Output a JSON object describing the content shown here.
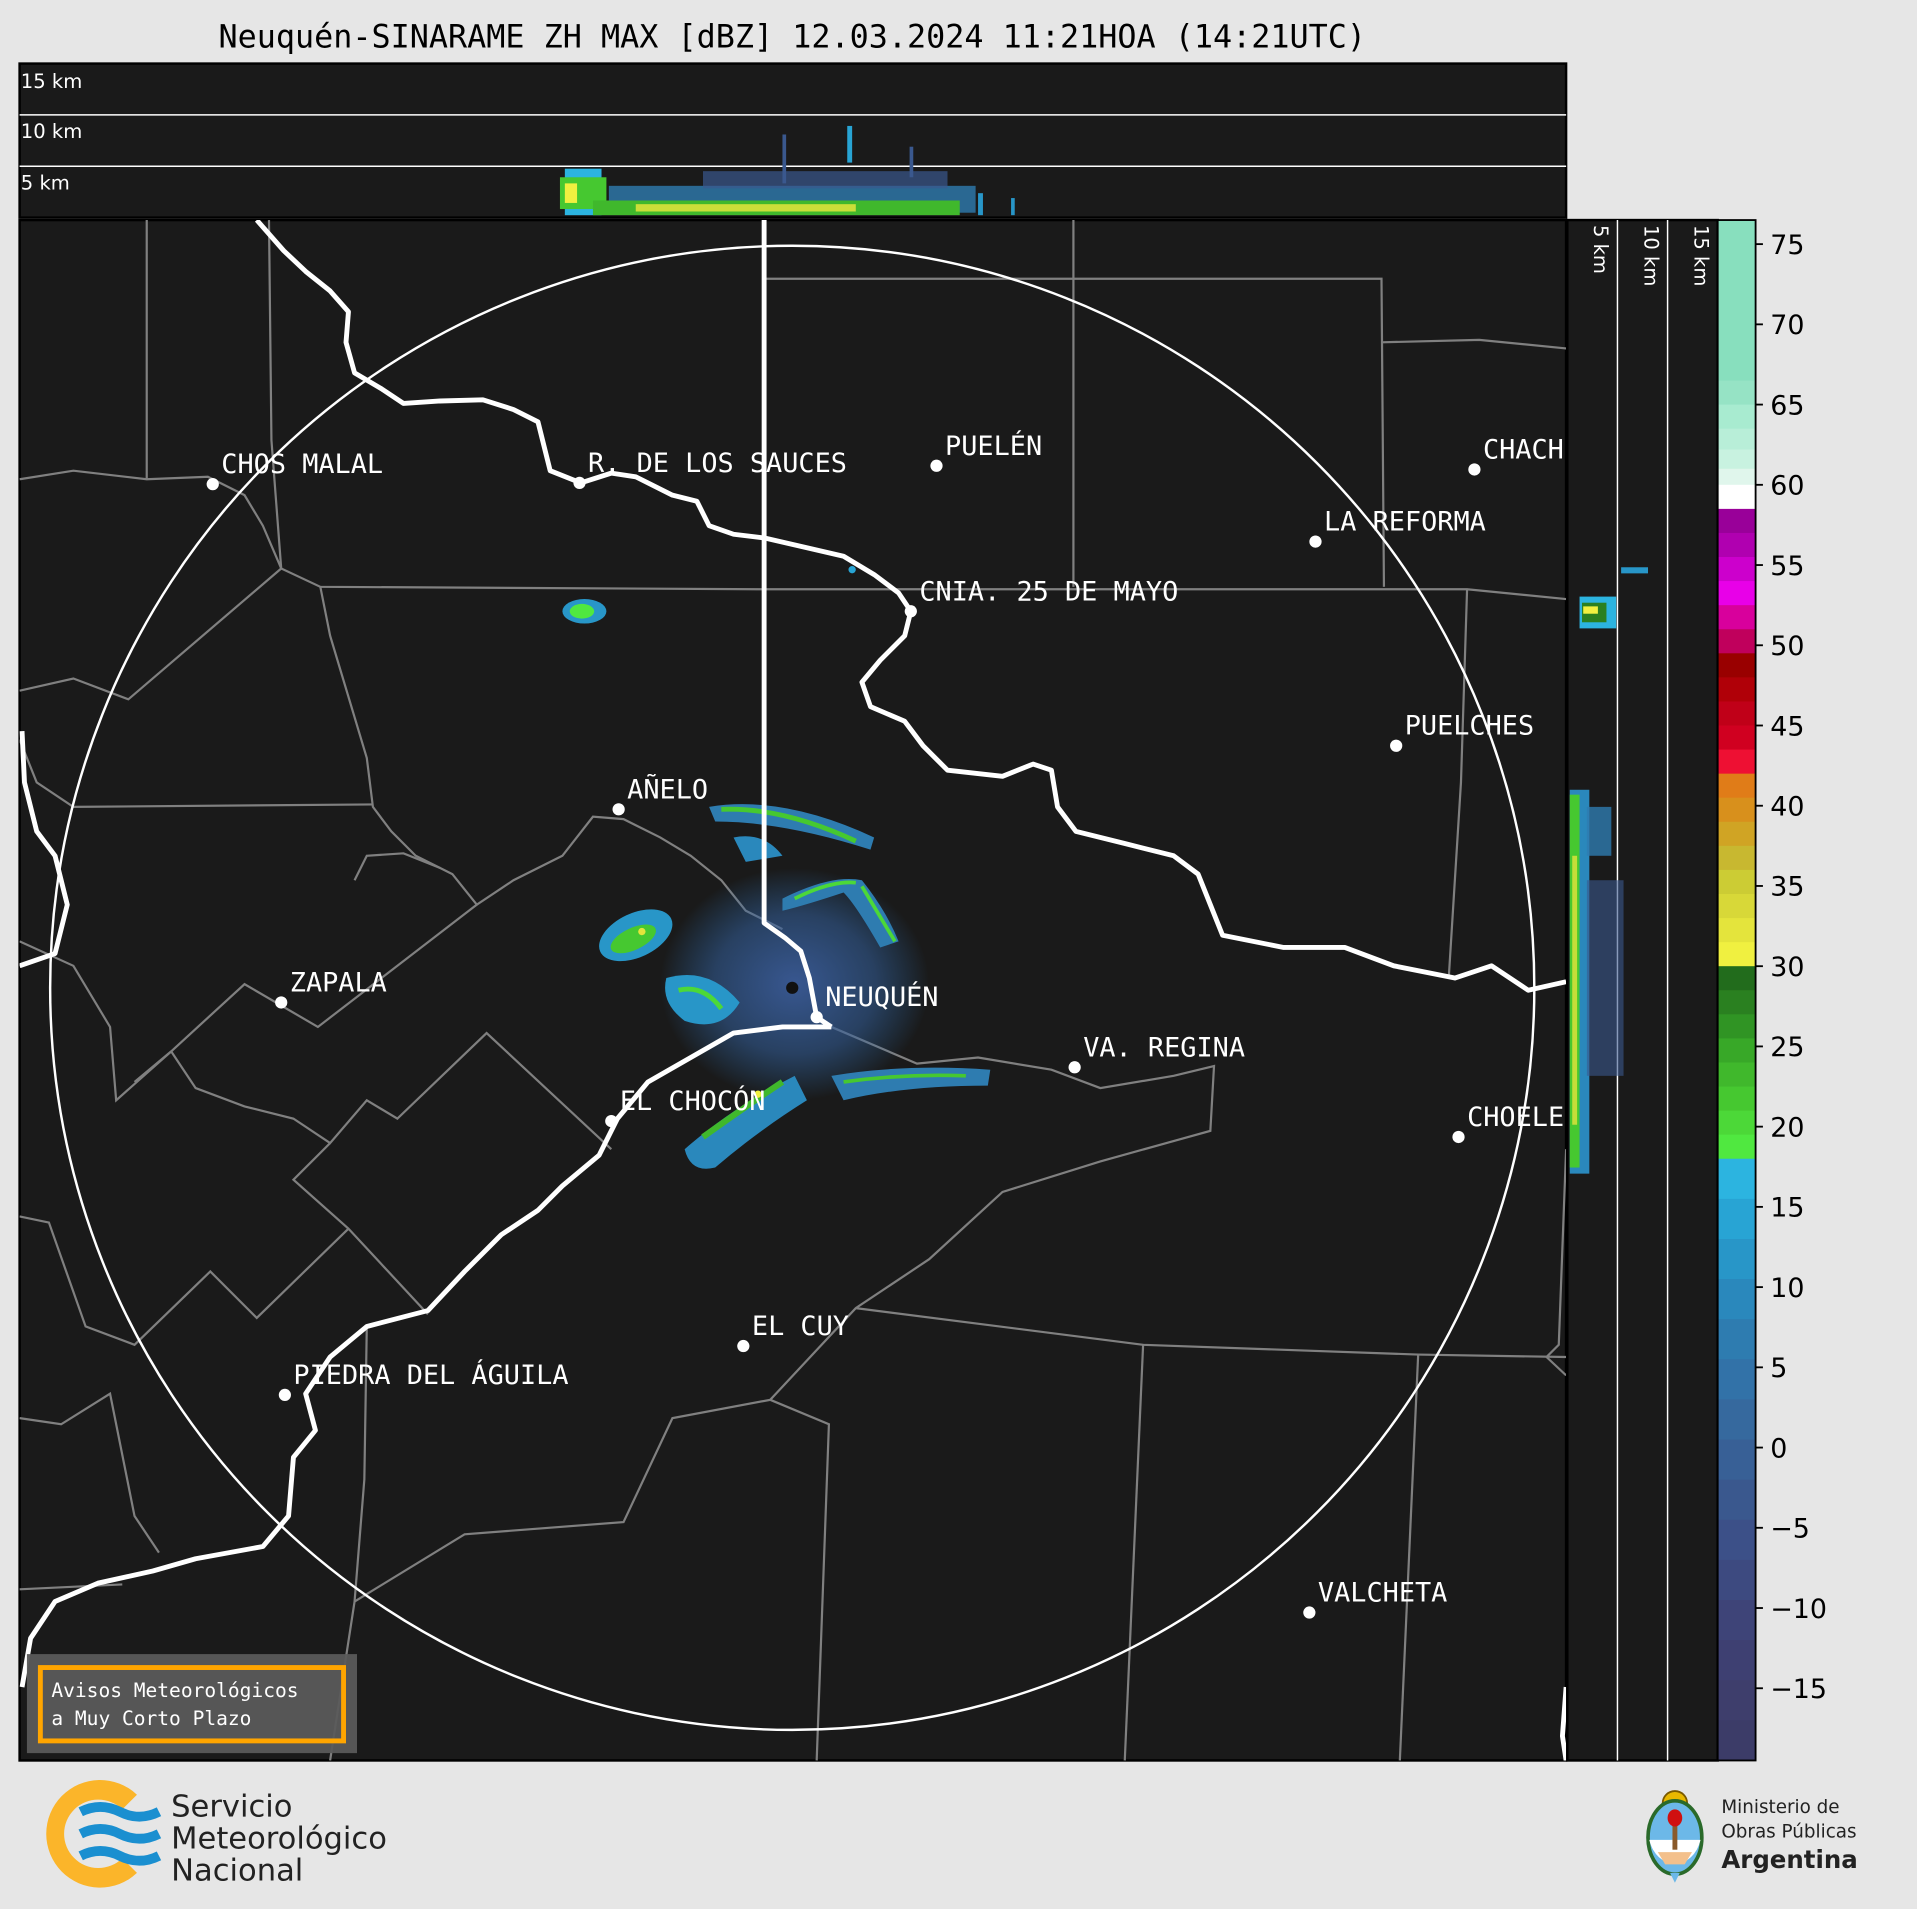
{
  "title": "Neuquén-SINARAME ZH MAX [dBZ] 12.03.2024 11:21HOA (14:21UTC)",
  "top_panel": {
    "height_labels": [
      "15 km",
      "10 km",
      "5 km"
    ]
  },
  "side_panel": {
    "height_labels": [
      "5 km",
      "10 km",
      "15 km"
    ]
  },
  "cities": [
    {
      "name": "CHOS MALAL"
    },
    {
      "name": "R. DE LOS SAUCES"
    },
    {
      "name": "PUELÉN"
    },
    {
      "name": "CHACH"
    },
    {
      "name": "LA REFORMA"
    },
    {
      "name": "CNIA. 25 DE MAYO"
    },
    {
      "name": "PUELCHES"
    },
    {
      "name": "AÑELO"
    },
    {
      "name": "ZAPALA"
    },
    {
      "name": "NEUQUÉN"
    },
    {
      "name": "VA. REGINA"
    },
    {
      "name": "EL CHOCÓN"
    },
    {
      "name": "CHOELE"
    },
    {
      "name": "EL CUY"
    },
    {
      "name": "PIEDRA DEL ÁGUILA"
    },
    {
      "name": "VALCHETA"
    }
  ],
  "colorbar": {
    "unit": "dBZ",
    "range": [
      -19.5,
      76.5
    ],
    "ticks": [
      75,
      70,
      65,
      60,
      55,
      50,
      45,
      40,
      35,
      30,
      25,
      20,
      15,
      10,
      5,
      0,
      -5,
      -10,
      -15
    ],
    "tick_labels": [
      "75",
      "70",
      "65",
      "60",
      "55",
      "50",
      "45",
      "40",
      "35",
      "30",
      "25",
      "20",
      "15",
      "10",
      "5",
      "0",
      "−5",
      "−10",
      "−15"
    ],
    "colormap": [
      {
        "from": 66.5,
        "to": 76.5,
        "color": "#88dfbe"
      },
      {
        "from": 65,
        "to": 66.5,
        "color": "#96e3c5"
      },
      {
        "from": 63.5,
        "to": 65,
        "color": "#a8ebd0"
      },
      {
        "from": 62.2,
        "to": 63.5,
        "color": "#b8eed8"
      },
      {
        "from": 61,
        "to": 62.2,
        "color": "#c8f2e0"
      },
      {
        "from": 60,
        "to": 61,
        "color": "#e0f6ec"
      },
      {
        "from": 58.5,
        "to": 60,
        "color": "#ffffff"
      },
      {
        "from": 57,
        "to": 58.5,
        "color": "#990099"
      },
      {
        "from": 55.5,
        "to": 57,
        "color": "#b000b0"
      },
      {
        "from": 54,
        "to": 55.5,
        "color": "#cc00cc"
      },
      {
        "from": 52.5,
        "to": 54,
        "color": "#e800e8"
      },
      {
        "from": 51,
        "to": 52.5,
        "color": "#d8009c"
      },
      {
        "from": 49.5,
        "to": 51,
        "color": "#c0005c"
      },
      {
        "from": 48,
        "to": 49.5,
        "color": "#990000"
      },
      {
        "from": 46.5,
        "to": 48,
        "color": "#b00008"
      },
      {
        "from": 45,
        "to": 46.5,
        "color": "#c00018"
      },
      {
        "from": 43.5,
        "to": 45,
        "color": "#d00020"
      },
      {
        "from": 42,
        "to": 43.5,
        "color": "#ee1033"
      },
      {
        "from": 40.5,
        "to": 42,
        "color": "#e07c18"
      },
      {
        "from": 39,
        "to": 40.5,
        "color": "#d8901c"
      },
      {
        "from": 37.5,
        "to": 39,
        "color": "#d0a424"
      },
      {
        "from": 36,
        "to": 37.5,
        "color": "#c8b830"
      },
      {
        "from": 34.5,
        "to": 36,
        "color": "#cccc34"
      },
      {
        "from": 33,
        "to": 34.5,
        "color": "#d8d838"
      },
      {
        "from": 31.5,
        "to": 33,
        "color": "#e4e43c"
      },
      {
        "from": 30,
        "to": 31.5,
        "color": "#f0f040"
      },
      {
        "from": 28.5,
        "to": 30,
        "color": "#226c1c"
      },
      {
        "from": 27,
        "to": 28.5,
        "color": "#2a8020"
      },
      {
        "from": 25.5,
        "to": 27,
        "color": "#309424"
      },
      {
        "from": 24,
        "to": 25.5,
        "color": "#38a828"
      },
      {
        "from": 22.5,
        "to": 24,
        "color": "#40b82c"
      },
      {
        "from": 21,
        "to": 22.5,
        "color": "#46c830"
      },
      {
        "from": 19.5,
        "to": 21,
        "color": "#4cd838"
      },
      {
        "from": 18,
        "to": 19.5,
        "color": "#50e840"
      },
      {
        "from": 15.5,
        "to": 18,
        "color": "#2cb4e0"
      },
      {
        "from": 13,
        "to": 15.5,
        "color": "#28a4d4"
      },
      {
        "from": 10.5,
        "to": 13,
        "color": "#2896c8"
      },
      {
        "from": 8,
        "to": 10.5,
        "color": "#2a88bc"
      },
      {
        "from": 5.5,
        "to": 8,
        "color": "#2e7cb0"
      },
      {
        "from": 3,
        "to": 5.5,
        "color": "#3272a8"
      },
      {
        "from": 0.5,
        "to": 3,
        "color": "#36699e"
      },
      {
        "from": -2,
        "to": 0.5,
        "color": "#386096"
      },
      {
        "from": -4.5,
        "to": -2,
        "color": "#3a588e"
      },
      {
        "from": -7,
        "to": -4.5,
        "color": "#3c5088"
      },
      {
        "from": -9.5,
        "to": -7,
        "color": "#3d4a80"
      },
      {
        "from": -12,
        "to": -9.5,
        "color": "#3e4478"
      },
      {
        "from": -14.5,
        "to": -12,
        "color": "#3e4072"
      },
      {
        "from": -17,
        "to": -14.5,
        "color": "#3e3e6c"
      },
      {
        "from": -19.5,
        "to": -17,
        "color": "#3c3c68"
      }
    ]
  },
  "alert_box": {
    "line1": "Avisos Meteorológicos",
    "line2": "a Muy Corto Plazo",
    "border_color": "#ffa500"
  },
  "logos": {
    "smn": {
      "line1": "Servicio",
      "line2": "Meteorológico",
      "line3": "Nacional"
    },
    "ministry": {
      "line1": "Ministerio de",
      "line2": "Obras Públicas",
      "line3": "Argentina"
    }
  },
  "colors": {
    "map_background": "#1a1a1a",
    "page_background": "#e6e6e6",
    "province_border": "#ffffff",
    "department_border": "#808080"
  }
}
